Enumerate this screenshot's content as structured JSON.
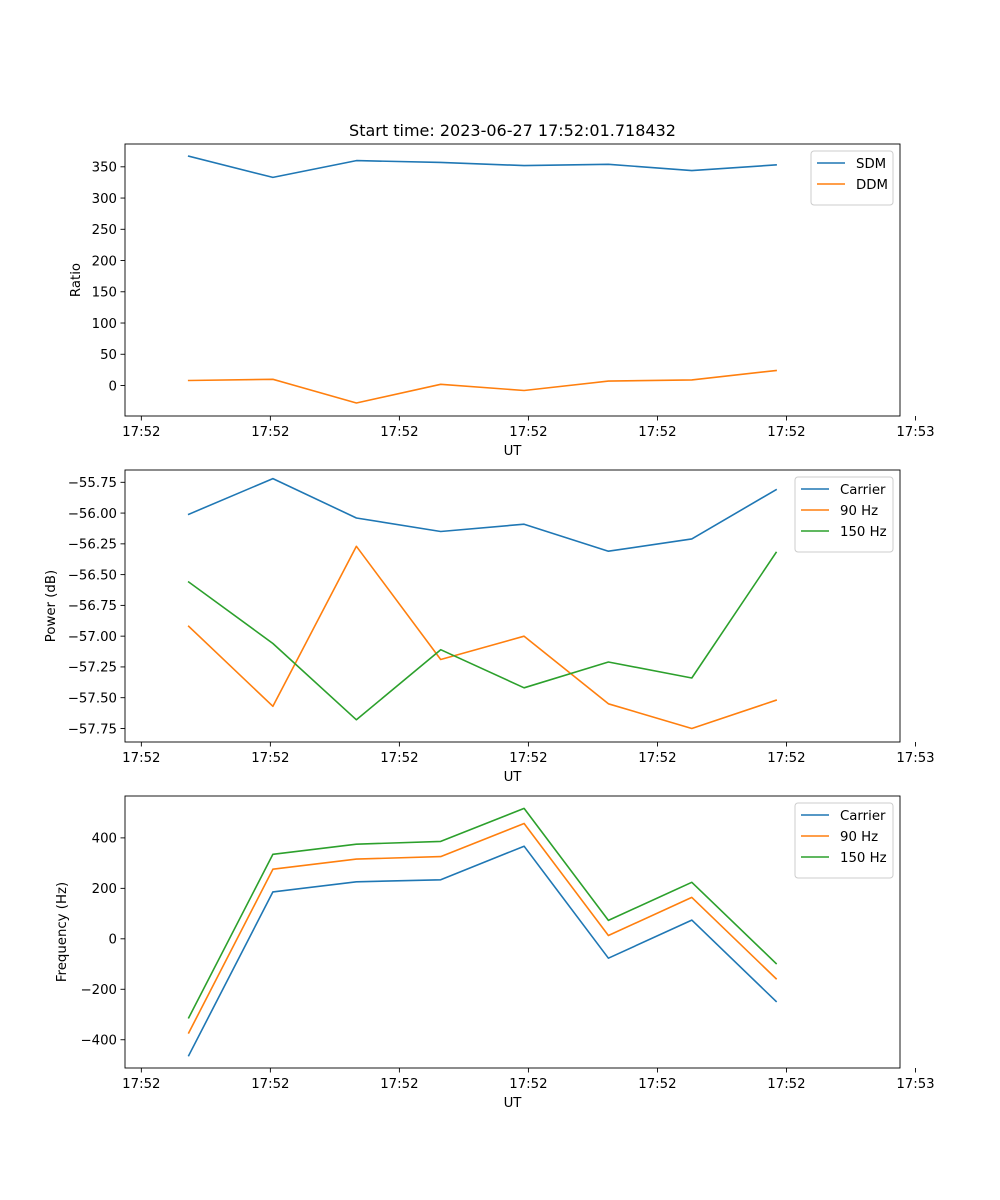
{
  "figure": {
    "title": "Start time: 2023-06-27 17:52:01.718432"
  },
  "colors": {
    "blue": "#1f77b4",
    "orange": "#ff7f0e",
    "green": "#2ca02c"
  },
  "chart_data": [
    {
      "type": "line",
      "title": "Start time: 2023-06-27 17:52:01.718432",
      "xlabel": "UT",
      "ylabel": "Ratio",
      "xlim": [
        -0.19,
        8.82
      ],
      "ylim": [
        -48.8,
        386.5
      ],
      "x": [
        0.55,
        1.53,
        2.5,
        3.48,
        4.45,
        5.43,
        6.4,
        7.38
      ],
      "xticks": [
        0,
        1.5,
        3,
        4.5,
        6,
        7.5,
        9
      ],
      "xtick_labels": [
        "17:52",
        "17:52",
        "17:52",
        "17:52",
        "17:52",
        "17:52",
        "17:53"
      ],
      "yticks": [
        0,
        50,
        100,
        150,
        200,
        250,
        300,
        350
      ],
      "ytick_labels": [
        "0",
        "50",
        "100",
        "150",
        "200",
        "250",
        "300",
        "350"
      ],
      "legend": "upper right",
      "grid": false,
      "series": [
        {
          "name": "SDM",
          "color": "#1f77b4",
          "values": [
            367,
            333,
            360,
            357,
            352,
            354,
            344,
            353
          ]
        },
        {
          "name": "DDM",
          "color": "#ff7f0e",
          "values": [
            8,
            10,
            -28,
            2,
            -8,
            7,
            9,
            24
          ]
        }
      ]
    },
    {
      "type": "line",
      "xlabel": "UT",
      "ylabel": "Power (dB)",
      "xlim": [
        -0.19,
        8.82
      ],
      "ylim": [
        -57.86,
        -55.65
      ],
      "x": [
        0.55,
        1.53,
        2.5,
        3.48,
        4.45,
        5.43,
        6.4,
        7.38
      ],
      "xticks": [
        0,
        1.5,
        3,
        4.5,
        6,
        7.5,
        9
      ],
      "xtick_labels": [
        "17:52",
        "17:52",
        "17:52",
        "17:52",
        "17:52",
        "17:52",
        "17:53"
      ],
      "yticks": [
        -57.75,
        -57.5,
        -57.25,
        -57.0,
        -56.75,
        -56.5,
        -56.25,
        -56.0,
        -55.75
      ],
      "ytick_labels": [
        "−57.75",
        "−57.50",
        "−57.25",
        "−57.00",
        "−56.75",
        "−56.50",
        "−56.25",
        "−56.00",
        "−55.75"
      ],
      "legend": "upper right",
      "grid": false,
      "series": [
        {
          "name": "Carrier",
          "color": "#1f77b4",
          "values": [
            -56.01,
            -55.72,
            -56.04,
            -56.15,
            -56.09,
            -56.31,
            -56.21,
            -55.81
          ]
        },
        {
          "name": "90 Hz",
          "color": "#ff7f0e",
          "values": [
            -56.92,
            -57.57,
            -56.27,
            -57.19,
            -57.0,
            -57.55,
            -57.75,
            -57.52
          ]
        },
        {
          "name": "150 Hz",
          "color": "#2ca02c",
          "values": [
            -56.56,
            -57.06,
            -57.68,
            -57.11,
            -57.42,
            -57.21,
            -57.34,
            -56.32
          ]
        }
      ]
    },
    {
      "type": "line",
      "xlabel": "UT",
      "ylabel": "Frequency (Hz)",
      "xlim": [
        -0.19,
        8.82
      ],
      "ylim": [
        -512,
        566
      ],
      "x": [
        0.55,
        1.53,
        2.5,
        3.48,
        4.45,
        5.43,
        6.4,
        7.38
      ],
      "xticks": [
        0,
        1.5,
        3,
        4.5,
        6,
        7.5,
        9
      ],
      "xtick_labels": [
        "17:52",
        "17:52",
        "17:52",
        "17:52",
        "17:52",
        "17:52",
        "17:53"
      ],
      "yticks": [
        -400,
        -200,
        0,
        200,
        400
      ],
      "ytick_labels": [
        "−400",
        "−200",
        "0",
        "200",
        "400"
      ],
      "legend": "upper right",
      "grid": false,
      "series": [
        {
          "name": "Carrier",
          "color": "#1f77b4",
          "values": [
            -463,
            186,
            226,
            234,
            367,
            -77,
            74,
            -248
          ]
        },
        {
          "name": "90 Hz",
          "color": "#ff7f0e",
          "values": [
            -373,
            276,
            316,
            326,
            457,
            13,
            164,
            -158
          ]
        },
        {
          "name": "150 Hz",
          "color": "#2ca02c",
          "values": [
            -313,
            335,
            375,
            386,
            517,
            73,
            224,
            -98
          ]
        }
      ]
    }
  ]
}
